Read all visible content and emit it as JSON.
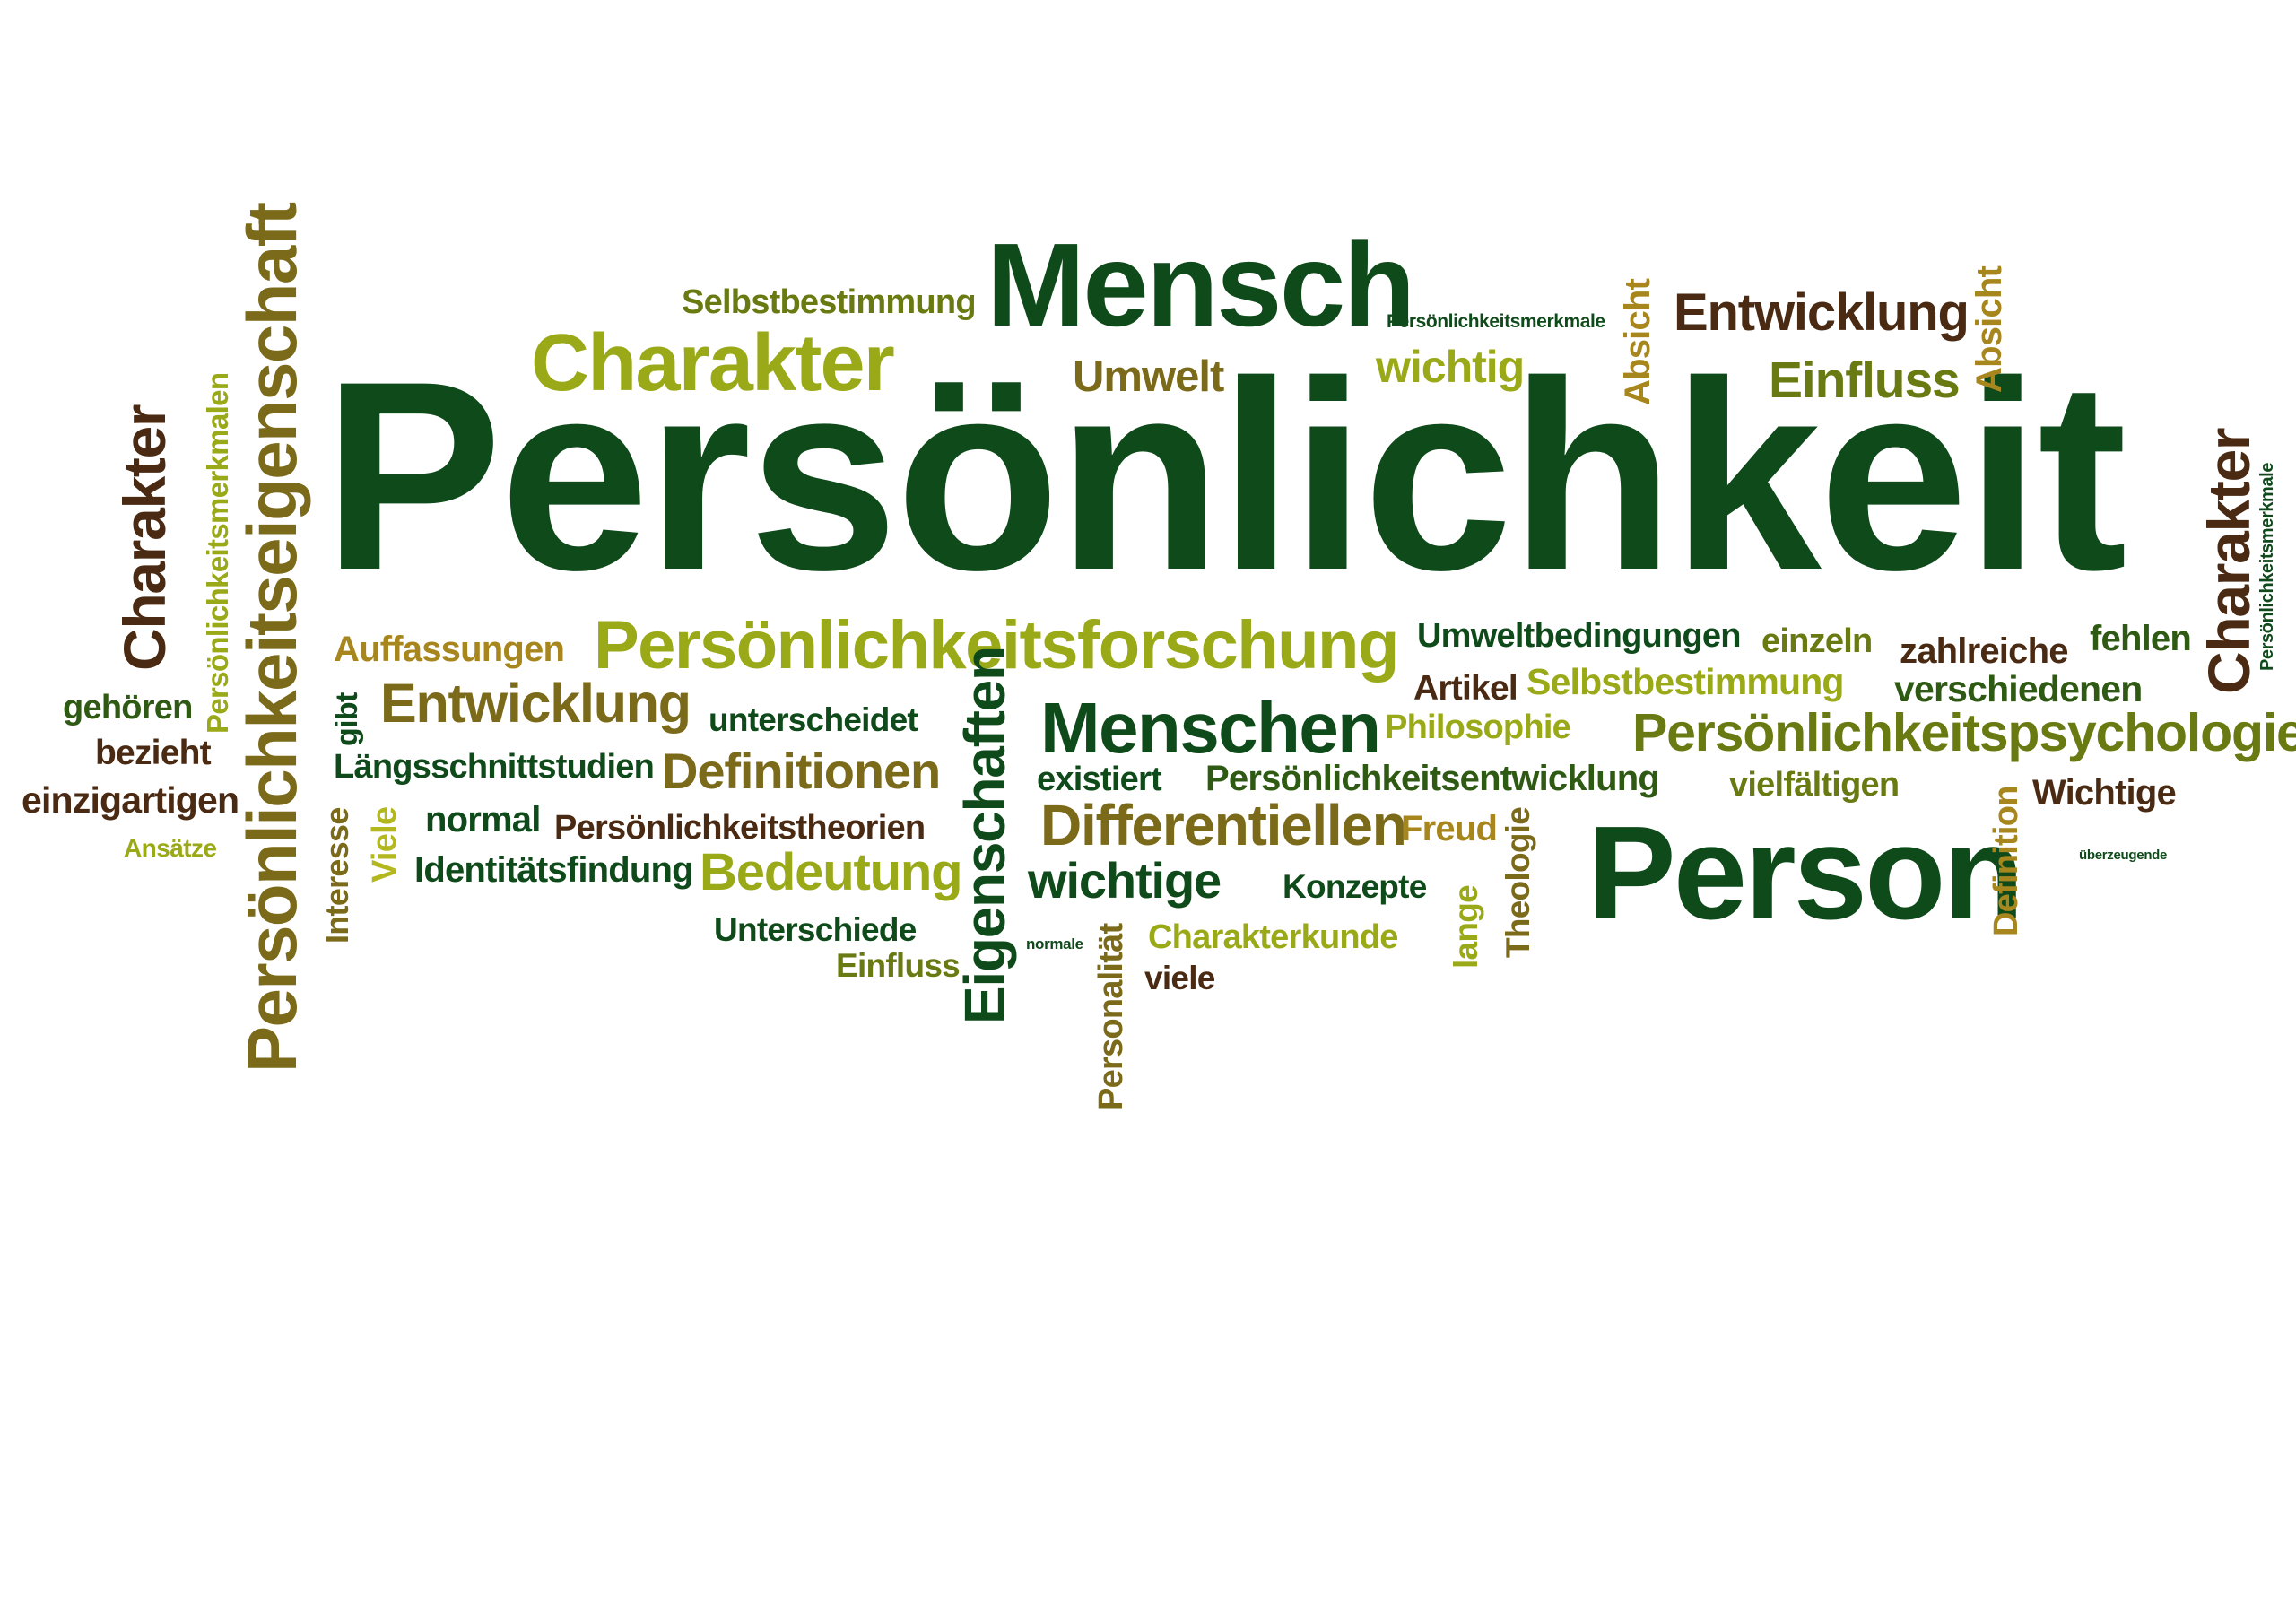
{
  "cloud": {
    "persoenlichkeit": "Persönlichkeit",
    "mensch": "Mensch",
    "person": "Person",
    "persoenlichkeitsforschung": "Persönlichkeitsforschung",
    "persoenlichkeitspsychologie": "Persönlichkeitspsychologie",
    "menschen": "Menschen",
    "charakter_top": "Charakter",
    "charakter_left": "Charakter",
    "charakter_right": "Charakter",
    "persoenlichkeitseigenschaft": "Persönlichkeitseigenschaft",
    "persoenlichkeitsmerkmalen": "Persönlichkeitsmerkmalen",
    "persoenlichkeitsmerkmale_top": "Persönlichkeitsmerkmale",
    "persoenlichkeitsmerkmale_right": "Persönlichkeitsmerkmale",
    "selbstbestimmung_top": "Selbstbestimmung",
    "selbstbestimmung_mid": "Selbstbestimmung",
    "entwicklung_top": "Entwicklung",
    "entwicklung_left": "Entwicklung",
    "einfluss_top": "Einfluss",
    "einfluss_bottom": "Einfluss",
    "umwelt": "Umwelt",
    "wichtig": "wichtig",
    "absicht_1": "Absicht",
    "absicht_2": "Absicht",
    "auffassungen": "Auffassungen",
    "umweltbedingungen": "Umweltbedingungen",
    "einzeln": "einzeln",
    "zahlreiche": "zahlreiche",
    "fehlen": "fehlen",
    "artikel": "Artikel",
    "verschiedenen": "verschiedenen",
    "gehoeren": "gehören",
    "bezieht": "bezieht",
    "einzigartigen": "einzigartigen",
    "ansaetze": "Ansätze",
    "gibt": "gibt",
    "unterscheidet": "unterscheidet",
    "philosophie": "Philosophie",
    "laengsschnittstudien": "Längsschnittstudien",
    "definitionen": "Definitionen",
    "existiert": "existiert",
    "persoenlichkeitsentwicklung": "Persönlichkeitsentwicklung",
    "vielfaeltigen": "vielfältigen",
    "wichtige_right": "Wichtige",
    "eigenschaften": "Eigenschaften",
    "interesse": "Interesse",
    "viele_rot": "Viele",
    "normal": "normal",
    "persoenlichkeitstheorien": "Persönlichkeitstheorien",
    "differentiellen": "Differentiellen",
    "freud": "Freud",
    "definition": "Definition",
    "ueberzeugende": "überzeugende",
    "identitaetsfindung": "Identitätsfindung",
    "bedeutung": "Bedeutung",
    "wichtige": "wichtige",
    "konzepte": "Konzepte",
    "theologie": "Theologie",
    "lange": "lange",
    "unterschiede": "Unterschiede",
    "normale": "normale",
    "personalitaet": "Personalität",
    "charakterkunde": "Charakterkunde",
    "viele": "viele"
  },
  "colors": {
    "dark_green": "#0f4a1a",
    "green": "#2f5a14",
    "olive": "#6a7a12",
    "light_green": "#9aa918",
    "yellow_green": "#b3b81e",
    "brown": "#4a2a12",
    "olive_brown": "#7a6a1a",
    "golden": "#a7861e"
  }
}
